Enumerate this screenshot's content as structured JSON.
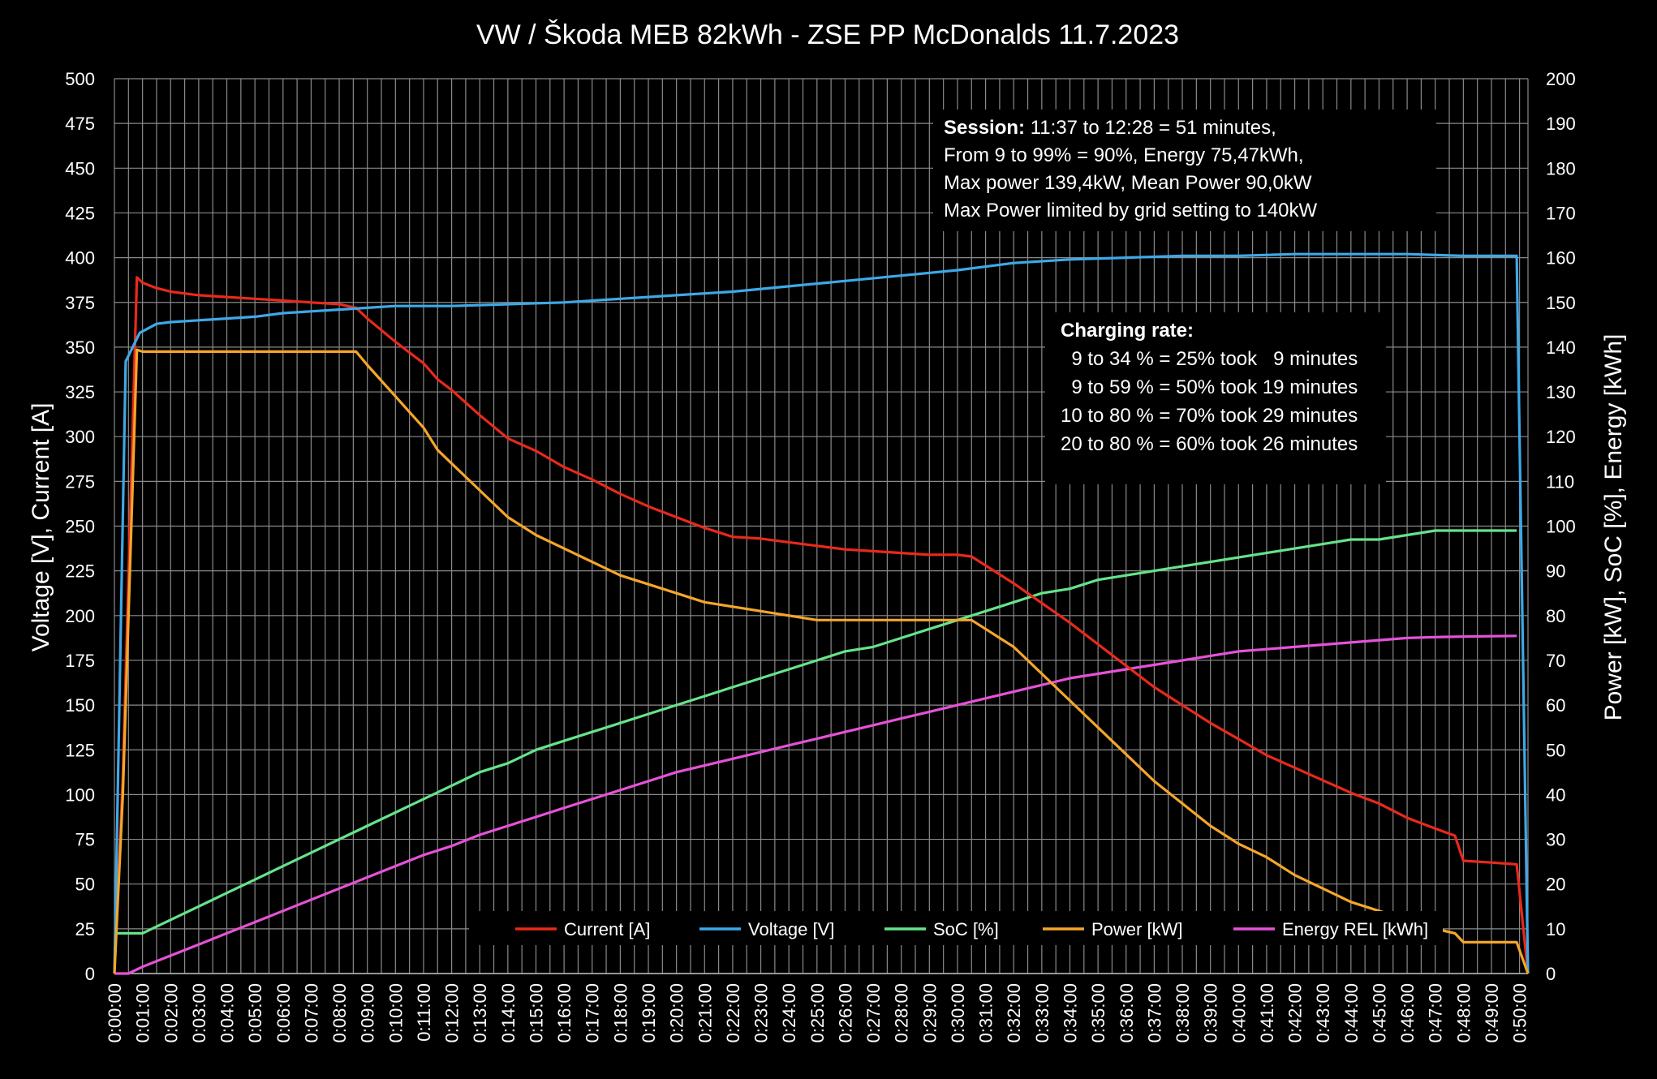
{
  "chart_data": {
    "type": "line",
    "title": "VW / Škoda MEB 82kWh  - ZSE PP McDonalds 11.7.2023",
    "ylabel_left": "Voltage [V], Current [A]",
    "ylabel_right": "Power [kW], SoC [%], Energy [kWh]",
    "xlabel": "",
    "x_ticks": [
      "0:00:00",
      "0:01:00",
      "0:02:00",
      "0:03:00",
      "0:04:00",
      "0:05:00",
      "0:06:00",
      "0:07:00",
      "0:08:00",
      "0:09:00",
      "0:10:00",
      "0:11:00",
      "0:12:00",
      "0:13:00",
      "0:14:00",
      "0:15:00",
      "0:16:00",
      "0:17:00",
      "0:18:00",
      "0:19:00",
      "0:20:00",
      "0:21:00",
      "0:22:00",
      "0:23:00",
      "0:24:00",
      "0:25:00",
      "0:26:00",
      "0:27:00",
      "0:28:00",
      "0:29:00",
      "0:30:00",
      "0:31:00",
      "0:32:00",
      "0:33:00",
      "0:34:00",
      "0:35:00",
      "0:36:00",
      "0:37:00",
      "0:38:00",
      "0:39:00",
      "0:40:00",
      "0:41:00",
      "0:42:00",
      "0:43:00",
      "0:44:00",
      "0:45:00",
      "0:46:00",
      "0:47:00",
      "0:48:00",
      "0:49:00",
      "0:50:00"
    ],
    "xlim_minutes": [
      0,
      50.3
    ],
    "ylim_left": [
      0,
      500
    ],
    "ylim_right": [
      0,
      200
    ],
    "left_ticks": [
      "0",
      "25",
      "50",
      "75",
      "100",
      "125",
      "150",
      "175",
      "200",
      "225",
      "250",
      "275",
      "300",
      "325",
      "350",
      "375",
      "400",
      "425",
      "450",
      "475",
      "500"
    ],
    "right_ticks": [
      "0",
      "10",
      "20",
      "30",
      "40",
      "50",
      "60",
      "70",
      "80",
      "90",
      "100",
      "110",
      "120",
      "130",
      "140",
      "150",
      "160",
      "170",
      "180",
      "190",
      "200"
    ],
    "grid": true,
    "legend_position": "bottom",
    "series": [
      {
        "name": "Current [A]",
        "color": "#e8291c",
        "axis": "left",
        "points": [
          [
            0,
            0
          ],
          [
            0.3,
            110
          ],
          [
            0.8,
            389
          ],
          [
            1,
            386
          ],
          [
            1.5,
            383
          ],
          [
            2,
            381
          ],
          [
            3,
            379
          ],
          [
            4,
            378
          ],
          [
            5,
            377
          ],
          [
            6,
            376
          ],
          [
            7,
            375
          ],
          [
            8,
            374
          ],
          [
            8.6,
            372
          ],
          [
            9,
            366
          ],
          [
            10,
            353
          ],
          [
            11,
            341
          ],
          [
            11.5,
            332
          ],
          [
            12,
            326
          ],
          [
            13,
            312
          ],
          [
            14,
            299
          ],
          [
            15,
            292
          ],
          [
            16,
            283
          ],
          [
            17,
            276
          ],
          [
            18,
            268
          ],
          [
            19,
            261
          ],
          [
            20,
            255
          ],
          [
            21,
            249
          ],
          [
            22,
            244
          ],
          [
            23,
            243
          ],
          [
            24,
            241
          ],
          [
            25,
            239
          ],
          [
            26,
            237
          ],
          [
            27,
            236
          ],
          [
            28,
            235
          ],
          [
            29,
            234
          ],
          [
            30,
            234
          ],
          [
            30.5,
            233
          ],
          [
            31,
            228
          ],
          [
            32,
            218
          ],
          [
            33,
            207
          ],
          [
            34,
            196
          ],
          [
            35,
            184
          ],
          [
            36,
            172
          ],
          [
            37,
            160
          ],
          [
            38,
            150
          ],
          [
            39,
            140
          ],
          [
            40,
            131
          ],
          [
            41,
            122
          ],
          [
            42,
            115
          ],
          [
            43,
            108
          ],
          [
            44,
            101
          ],
          [
            45,
            95
          ],
          [
            46,
            87
          ],
          [
            47,
            81
          ],
          [
            47.7,
            77
          ],
          [
            48,
            63
          ],
          [
            49,
            62
          ],
          [
            49.9,
            61
          ],
          [
            50.3,
            0
          ]
        ]
      },
      {
        "name": "Voltage [V]",
        "color": "#3ea8e8",
        "axis": "left",
        "points": [
          [
            0,
            0
          ],
          [
            0.4,
            342
          ],
          [
            0.9,
            358
          ],
          [
            1.5,
            363
          ],
          [
            2,
            364
          ],
          [
            3,
            365
          ],
          [
            4,
            366
          ],
          [
            5,
            367
          ],
          [
            6,
            369
          ],
          [
            7,
            370
          ],
          [
            8,
            371
          ],
          [
            9,
            372
          ],
          [
            10,
            373
          ],
          [
            12,
            373
          ],
          [
            14,
            374
          ],
          [
            16,
            375
          ],
          [
            18,
            377
          ],
          [
            20,
            379
          ],
          [
            22,
            381
          ],
          [
            24,
            384
          ],
          [
            26,
            387
          ],
          [
            28,
            390
          ],
          [
            30,
            393
          ],
          [
            32,
            397
          ],
          [
            34,
            399
          ],
          [
            36,
            400
          ],
          [
            38,
            401
          ],
          [
            40,
            401
          ],
          [
            42,
            402
          ],
          [
            44,
            402
          ],
          [
            46,
            402
          ],
          [
            48,
            401
          ],
          [
            49.9,
            401
          ],
          [
            50.3,
            0
          ]
        ]
      },
      {
        "name": "SoC [%]",
        "color": "#66e38a",
        "axis": "right",
        "points": [
          [
            0,
            9
          ],
          [
            0.3,
            9
          ],
          [
            1,
            9
          ],
          [
            2,
            12
          ],
          [
            3,
            15
          ],
          [
            4,
            18
          ],
          [
            5,
            21
          ],
          [
            6,
            24
          ],
          [
            7,
            27
          ],
          [
            8,
            30
          ],
          [
            9,
            33
          ],
          [
            10,
            36
          ],
          [
            11,
            39
          ],
          [
            12,
            42
          ],
          [
            13,
            45
          ],
          [
            14,
            47
          ],
          [
            15,
            50
          ],
          [
            16,
            52
          ],
          [
            17,
            54
          ],
          [
            18,
            56
          ],
          [
            19,
            58
          ],
          [
            20,
            60
          ],
          [
            21,
            62
          ],
          [
            22,
            64
          ],
          [
            23,
            66
          ],
          [
            24,
            68
          ],
          [
            25,
            70
          ],
          [
            26,
            72
          ],
          [
            27,
            73
          ],
          [
            28,
            75
          ],
          [
            29,
            77
          ],
          [
            30,
            79
          ],
          [
            31,
            81
          ],
          [
            32,
            83
          ],
          [
            33,
            85
          ],
          [
            34,
            86
          ],
          [
            35,
            88
          ],
          [
            36,
            89
          ],
          [
            37,
            90
          ],
          [
            38,
            91
          ],
          [
            39,
            92
          ],
          [
            40,
            93
          ],
          [
            41,
            94
          ],
          [
            42,
            95
          ],
          [
            43,
            96
          ],
          [
            44,
            97
          ],
          [
            45,
            97
          ],
          [
            46,
            98
          ],
          [
            47,
            99
          ],
          [
            48,
            99
          ],
          [
            49,
            99
          ],
          [
            49.9,
            99
          ]
        ]
      },
      {
        "name": "Power [kW]",
        "color": "#f4a62a",
        "axis": "right",
        "points": [
          [
            0,
            0
          ],
          [
            0.3,
            40
          ],
          [
            0.8,
            139.4
          ],
          [
            1,
            139
          ],
          [
            2,
            139
          ],
          [
            3,
            139
          ],
          [
            4,
            139
          ],
          [
            5,
            139
          ],
          [
            6,
            139
          ],
          [
            7,
            139
          ],
          [
            8,
            139
          ],
          [
            8.6,
            139
          ],
          [
            9,
            136
          ],
          [
            10,
            129
          ],
          [
            11,
            122
          ],
          [
            11.5,
            117
          ],
          [
            12,
            114
          ],
          [
            13,
            108
          ],
          [
            14,
            102
          ],
          [
            15,
            98
          ],
          [
            16,
            95
          ],
          [
            17,
            92
          ],
          [
            18,
            89
          ],
          [
            19,
            87
          ],
          [
            20,
            85
          ],
          [
            21,
            83
          ],
          [
            22,
            82
          ],
          [
            23,
            81
          ],
          [
            24,
            80
          ],
          [
            25,
            79
          ],
          [
            26,
            79
          ],
          [
            27,
            79
          ],
          [
            28,
            79
          ],
          [
            29,
            79
          ],
          [
            30,
            79
          ],
          [
            30.5,
            79
          ],
          [
            31,
            77
          ],
          [
            32,
            73
          ],
          [
            33,
            67
          ],
          [
            34,
            61
          ],
          [
            35,
            55
          ],
          [
            36,
            49
          ],
          [
            37,
            43
          ],
          [
            38,
            38
          ],
          [
            39,
            33
          ],
          [
            40,
            29
          ],
          [
            41,
            26
          ],
          [
            42,
            22
          ],
          [
            43,
            19
          ],
          [
            44,
            16
          ],
          [
            45,
            14
          ],
          [
            46,
            12
          ],
          [
            47,
            10
          ],
          [
            47.7,
            9
          ],
          [
            48,
            7
          ],
          [
            49,
            7
          ],
          [
            49.9,
            7
          ],
          [
            50.3,
            0
          ]
        ]
      },
      {
        "name": "Energy REL [kWh]",
        "color": "#e552d8",
        "axis": "right",
        "points": [
          [
            0,
            0
          ],
          [
            0.5,
            0
          ],
          [
            1,
            1.5
          ],
          [
            2,
            4
          ],
          [
            3,
            6.5
          ],
          [
            4,
            9
          ],
          [
            5,
            11.5
          ],
          [
            6,
            14
          ],
          [
            7,
            16.5
          ],
          [
            8,
            19
          ],
          [
            9,
            21.5
          ],
          [
            10,
            24
          ],
          [
            11,
            26.5
          ],
          [
            12,
            28.5
          ],
          [
            13,
            31
          ],
          [
            14,
            33
          ],
          [
            15,
            35
          ],
          [
            16,
            37
          ],
          [
            17,
            39
          ],
          [
            18,
            41
          ],
          [
            19,
            43
          ],
          [
            20,
            45
          ],
          [
            21,
            46.5
          ],
          [
            22,
            48
          ],
          [
            23,
            49.5
          ],
          [
            24,
            51
          ],
          [
            25,
            52.5
          ],
          [
            26,
            54
          ],
          [
            27,
            55.5
          ],
          [
            28,
            57
          ],
          [
            29,
            58.5
          ],
          [
            30,
            60
          ],
          [
            31,
            61.5
          ],
          [
            32,
            63
          ],
          [
            33,
            64.5
          ],
          [
            34,
            66
          ],
          [
            35,
            67
          ],
          [
            36,
            68
          ],
          [
            37,
            69
          ],
          [
            38,
            70
          ],
          [
            39,
            71
          ],
          [
            40,
            72
          ],
          [
            41,
            72.5
          ],
          [
            42,
            73
          ],
          [
            43,
            73.5
          ],
          [
            44,
            74
          ],
          [
            45,
            74.5
          ],
          [
            46,
            75
          ],
          [
            47,
            75.2
          ],
          [
            48,
            75.3
          ],
          [
            49,
            75.4
          ],
          [
            49.9,
            75.47
          ]
        ]
      }
    ],
    "annotations": {
      "session_heading": "Session:",
      "session_line1": "   11:37 to 12:28 = 51 minutes,",
      "session_line2": "From 9 to 99% = 90%, Energy 75,47kWh,",
      "session_line3": "Max power 139,4kW, Mean Power 90,0kW",
      "session_line4": "Max Power limited by grid setting to 140kW",
      "rate_heading": "Charging rate:",
      "rate_line1": "  9 to 34 % = 25% took   9 minutes",
      "rate_line2": "  9 to 59 % = 50% took 19 minutes",
      "rate_line3": "10 to 80 % = 70% took 29 minutes",
      "rate_line4": "20 to 80 % = 60% took 26 minutes"
    }
  }
}
